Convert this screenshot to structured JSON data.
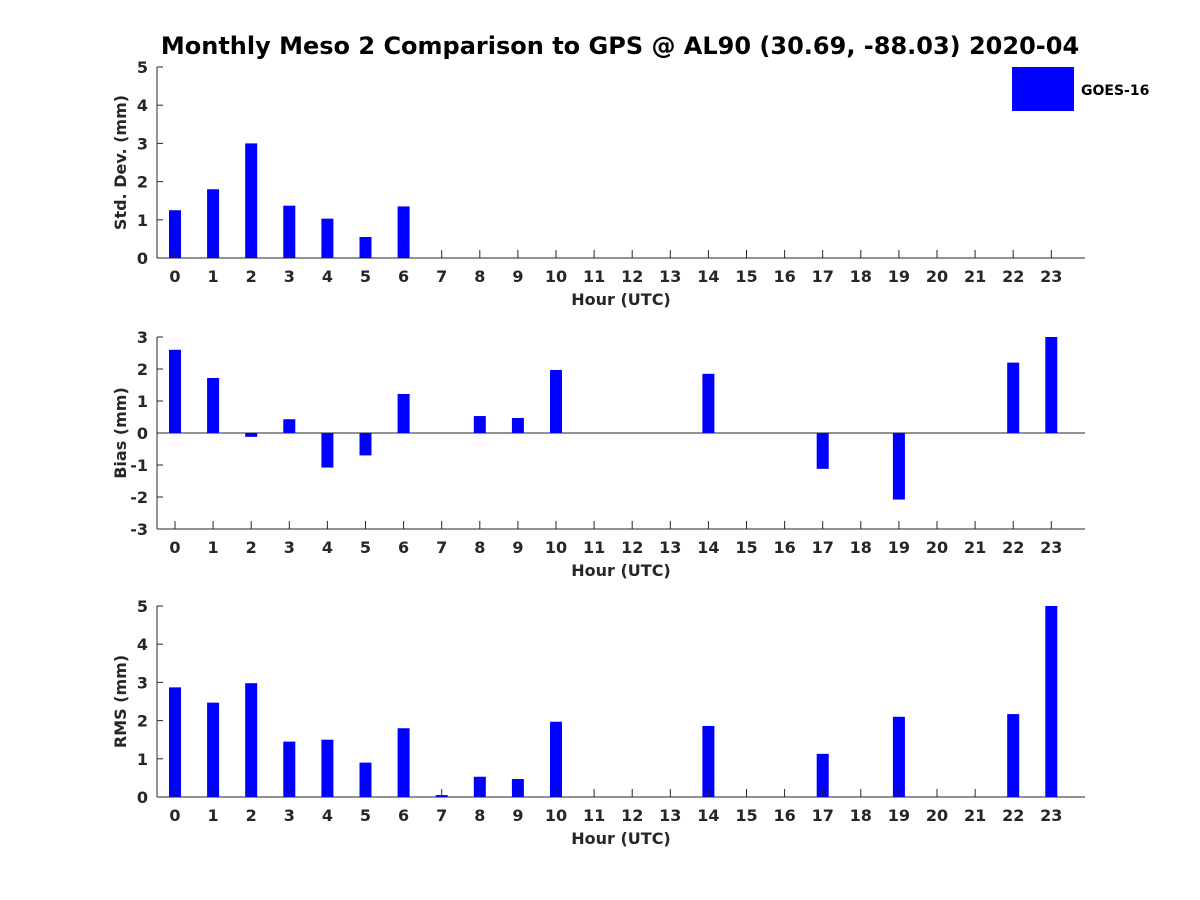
{
  "title": "Monthly Meso 2 Comparison to GPS @ AL90 (30.69, -88.03) 2020-04",
  "legend": {
    "label": "GOES-16",
    "color": "#0000ff",
    "placement": "top-right"
  },
  "chart_data": [
    {
      "type": "bar",
      "panel": "std-dev",
      "categories": [
        "0",
        "1",
        "2",
        "3",
        "4",
        "5",
        "6",
        "7",
        "8",
        "9",
        "10",
        "11",
        "12",
        "13",
        "14",
        "15",
        "16",
        "17",
        "18",
        "19",
        "20",
        "21",
        "22",
        "23"
      ],
      "series": [
        {
          "name": "GOES-16",
          "values": [
            1.25,
            1.8,
            3.0,
            1.37,
            1.03,
            0.55,
            1.35,
            0,
            0,
            0,
            0,
            0,
            0,
            0,
            0,
            0,
            0,
            0,
            0,
            0,
            0,
            0,
            0,
            0
          ]
        }
      ],
      "xlabel": "Hour (UTC)",
      "ylabel": "Std. Dev. (mm)",
      "ylim": [
        0,
        5
      ],
      "yticks": [
        "0",
        "1",
        "2",
        "3",
        "4",
        "5"
      ],
      "grid": false
    },
    {
      "type": "bar",
      "panel": "bias",
      "categories": [
        "0",
        "1",
        "2",
        "3",
        "4",
        "5",
        "6",
        "7",
        "8",
        "9",
        "10",
        "11",
        "12",
        "13",
        "14",
        "15",
        "16",
        "17",
        "18",
        "19",
        "20",
        "21",
        "22",
        "23"
      ],
      "series": [
        {
          "name": "GOES-16",
          "values": [
            2.6,
            1.72,
            -0.12,
            0.43,
            -1.08,
            -0.7,
            1.22,
            0,
            0.53,
            0.47,
            1.97,
            0,
            0,
            0,
            1.85,
            0,
            0,
            -1.12,
            0,
            -2.08,
            0,
            0,
            2.2,
            3.0
          ]
        }
      ],
      "xlabel": "Hour (UTC)",
      "ylabel": "Bias (mm)",
      "ylim": [
        -3,
        3
      ],
      "yticks": [
        "-3",
        "-2",
        "-1",
        "0",
        "1",
        "2",
        "3"
      ],
      "grid": false
    },
    {
      "type": "bar",
      "panel": "rms",
      "categories": [
        "0",
        "1",
        "2",
        "3",
        "4",
        "5",
        "6",
        "7",
        "8",
        "9",
        "10",
        "11",
        "12",
        "13",
        "14",
        "15",
        "16",
        "17",
        "18",
        "19",
        "20",
        "21",
        "22",
        "23"
      ],
      "series": [
        {
          "name": "GOES-16",
          "values": [
            2.87,
            2.47,
            2.98,
            1.45,
            1.5,
            0.9,
            1.8,
            0.05,
            0.53,
            0.47,
            1.97,
            0,
            0,
            0,
            1.86,
            0,
            0,
            1.13,
            0,
            2.1,
            0,
            0,
            2.17,
            5.0
          ]
        }
      ],
      "xlabel": "Hour (UTC)",
      "ylabel": "RMS (mm)",
      "ylim": [
        0,
        5
      ],
      "yticks": [
        "0",
        "1",
        "2",
        "3",
        "4",
        "5"
      ],
      "grid": false
    }
  ]
}
